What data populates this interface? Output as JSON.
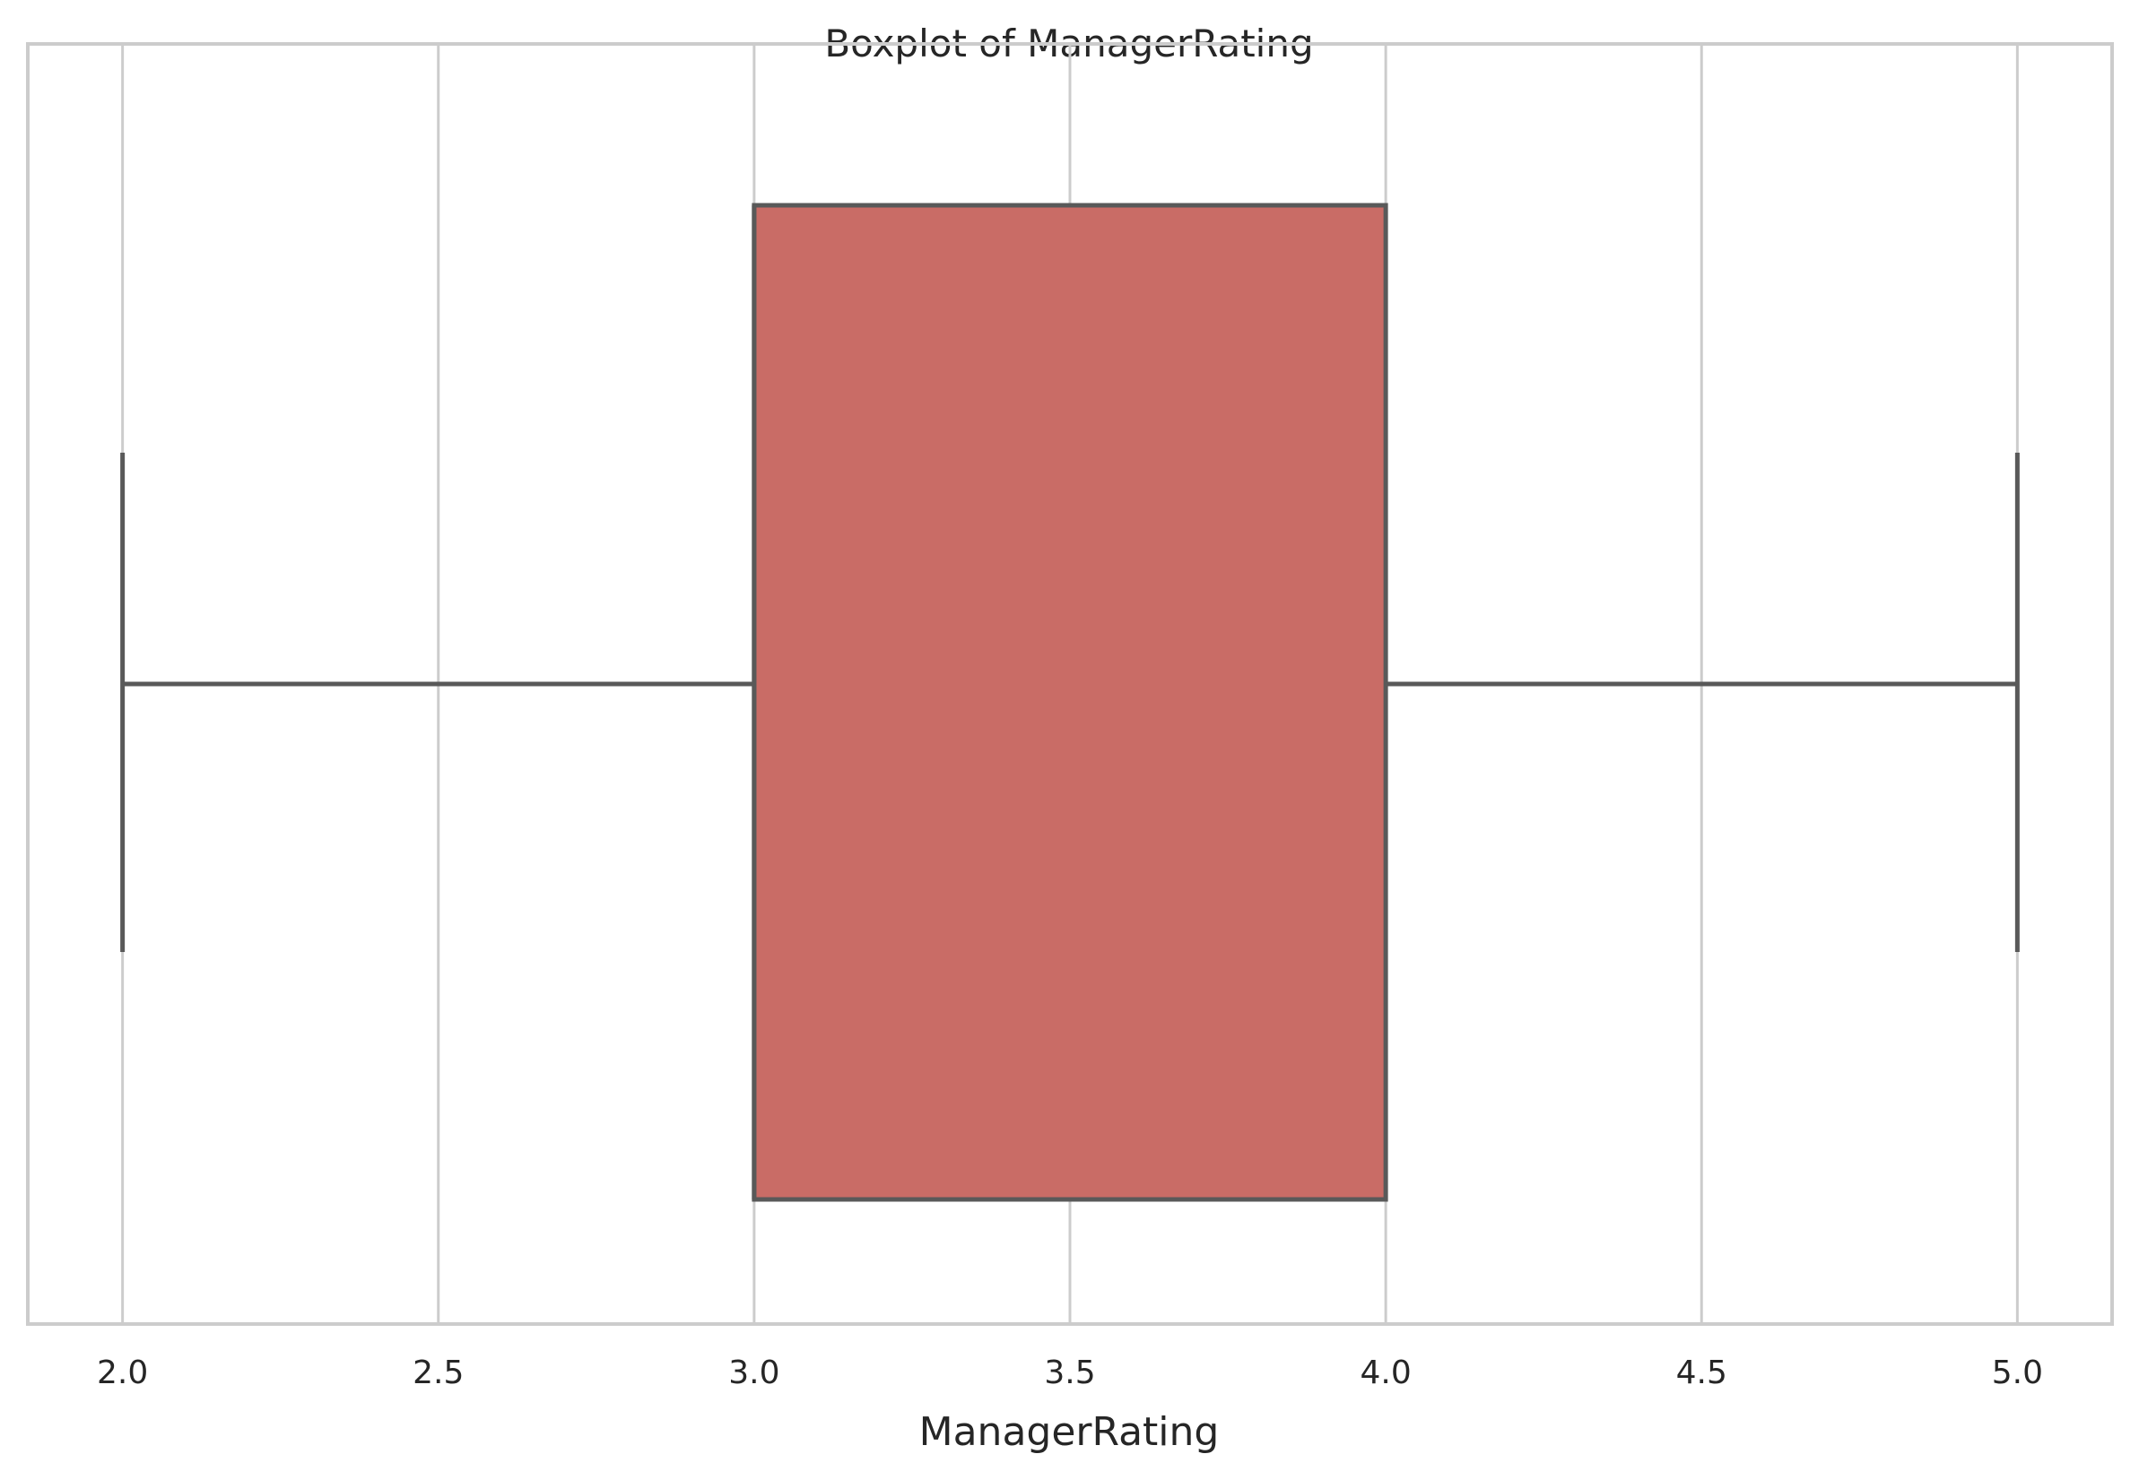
{
  "chart_data": {
    "type": "box",
    "title": "Boxplot of ManagerRating",
    "xlabel": "ManagerRating",
    "ylabel": "",
    "xlim": [
      1.85,
      5.15
    ],
    "x_ticks": [
      2.0,
      2.5,
      3.0,
      3.5,
      4.0,
      4.5,
      5.0
    ],
    "x_tick_labels": [
      "2.0",
      "2.5",
      "3.0",
      "3.5",
      "4.0",
      "4.5",
      "5.0"
    ],
    "orientation": "horizontal",
    "grid": true,
    "box": {
      "whisker_low": 2.0,
      "q1": 3.0,
      "median": 3.0,
      "q3": 4.0,
      "whisker_high": 5.0
    },
    "colors": {
      "box_fill": "#c96c66",
      "line": "#595959",
      "grid": "#cccccc"
    }
  }
}
